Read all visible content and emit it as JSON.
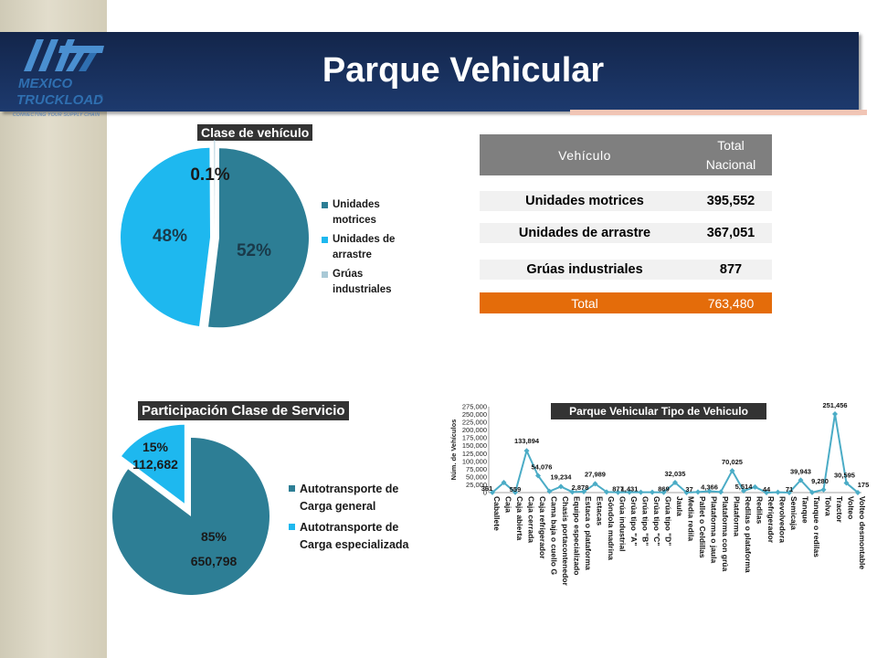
{
  "slide": {
    "title": "Parque Vehicular",
    "logo_line1": "MEXICO",
    "logo_line2": "TRUCKLOAD",
    "logo_tagline": "CONNECTING YOUR SUPPLY CHAIN",
    "logo_registered": "®"
  },
  "table": {
    "header_vehicle": "Vehículo",
    "header_total_line1": "Total",
    "header_total_line2": "Nacional",
    "rows": [
      {
        "label": "Unidades motrices",
        "value": "395,552"
      },
      {
        "label": "Unidades de arrastre",
        "value": "367,051"
      },
      {
        "label": "Grúas industriales",
        "value": "877"
      }
    ],
    "total_label": "Total",
    "total_value": "763,480"
  },
  "colors": {
    "navy": "#13254a",
    "teal": "#2d7e95",
    "cyan": "#1eb8ef",
    "orange": "#e46c0a",
    "gray_header": "#7f7f7f",
    "line": "#4bacc6"
  },
  "chart_data": [
    {
      "type": "pie",
      "title": "Clase de vehículo",
      "categories": [
        "Unidades motrices",
        "Unidades de arrastre",
        "Grúas industriales"
      ],
      "values": [
        52,
        48,
        0.1
      ],
      "labels": [
        "52%",
        "48%",
        "0.1%"
      ],
      "colors": [
        "#2d7e95",
        "#1eb8ef",
        "#a9c9d6"
      ],
      "legend": "right"
    },
    {
      "type": "pie",
      "title": "Participación Clase de Servicio",
      "categories": [
        "Autotransporte de Carga general",
        "Autotransporte de Carga especializada"
      ],
      "values": [
        650798,
        112682
      ],
      "pct_labels": [
        "85%",
        "15%"
      ],
      "value_labels": [
        "650,798",
        "112,682"
      ],
      "colors": [
        "#2d7e95",
        "#1eb8ef"
      ],
      "legend": "right"
    },
    {
      "type": "line",
      "title": "Parque Vehicular Tipo de Vehiculo",
      "ylabel": "Núm. de Vehículos",
      "ylim": [
        0,
        275000
      ],
      "yticks": [
        "0",
        "25,000",
        "50,000",
        "75,000",
        "100,000",
        "125,000",
        "150,000",
        "175,000",
        "200,000",
        "225,000",
        "250,000",
        "275,000"
      ],
      "categories": [
        "Caballete",
        "Caja",
        "Caja abierta",
        "Caja cerrada",
        "Caja refrigerador",
        "Cama baja o cuello G",
        "Chasis portacontenedor",
        "Equipo especializado",
        "Estaca o plataforma",
        "Estacas",
        "Góndola madrina",
        "Grúa industrial",
        "Grúa tipo \"A\"",
        "Grúa tipo \"B\"",
        "Grúa tipo \"C\"",
        "Grúa tipo \"D\"",
        "Jaula",
        "Media redila",
        "Pallet o Celdillas",
        "Plataforma o jaula",
        "Plataforma con grúa",
        "Plataforma",
        "Redilas o plataforma",
        "Redilas",
        "Refrigerador",
        "Revolvedora",
        "Semicaja",
        "Tanque",
        "Tanque o redilas",
        "Tolva",
        "Tractor",
        "Volteo",
        "Volteo desmontable"
      ],
      "values": [
        361,
        32000,
        559,
        133894,
        54076,
        4000,
        19234,
        2000,
        2878,
        27989,
        2000,
        877,
        1431,
        1000,
        1000,
        869,
        32035,
        37,
        2000,
        4366,
        2000,
        70025,
        5514,
        18000,
        44,
        1000,
        71,
        39943,
        500,
        9280,
        251456,
        30595,
        175
      ],
      "data_labels": [
        "361",
        "",
        "559",
        "133,894",
        "54,076",
        "",
        "19,234",
        "",
        "2,878",
        "27,989",
        "",
        "877",
        "1,431",
        "",
        "",
        "869",
        "32,035",
        "37",
        "",
        "4,366",
        "",
        "70,025",
        "5,514",
        "",
        "44",
        "",
        "71",
        "39,943",
        "",
        "9,280",
        "251,456",
        "30,595",
        "175"
      ],
      "grid": false
    }
  ]
}
